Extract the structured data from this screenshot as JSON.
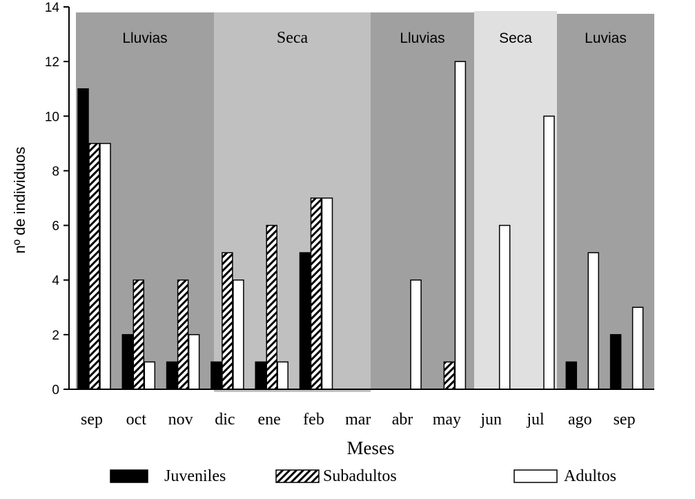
{
  "chart_data": {
    "type": "bar",
    "ylabel": "nº de individuos",
    "xlabel": "Meses",
    "ylim": [
      0,
      14
    ],
    "yticks": [
      "0",
      "2",
      "4",
      "6",
      "8",
      "10",
      "12",
      "14"
    ],
    "categories": [
      "sep",
      "oct",
      "nov",
      "dic",
      "ene",
      "feb",
      "mar",
      "abr",
      "may",
      "jun",
      "jul",
      "ago",
      "sep"
    ],
    "series": [
      {
        "name": "Juveniles",
        "fill": "#000000",
        "values": [
          11,
          2,
          1,
          1,
          1,
          5,
          0,
          0,
          0,
          0,
          0,
          1,
          2
        ]
      },
      {
        "name": "Subadultos",
        "fill": "hatch",
        "values": [
          9,
          4,
          4,
          5,
          6,
          7,
          0,
          0,
          1,
          0,
          0,
          0,
          0
        ]
      },
      {
        "name": "Adultos",
        "fill": "#ffffff",
        "values": [
          9,
          1,
          2,
          4,
          1,
          7,
          0,
          4,
          12,
          6,
          10,
          5,
          3
        ]
      }
    ],
    "seasons": [
      {
        "label": "Lluvias",
        "from": 0,
        "to": 2,
        "color": "#a0a0a0"
      },
      {
        "label": "Seca",
        "from": 3,
        "to": 6,
        "color": "#c0c0c0"
      },
      {
        "label": "Lluvias",
        "from": 7,
        "to": 8,
        "color": "#a0a0a0"
      },
      {
        "label": "Seca",
        "from": 9,
        "to": 10,
        "color": "#e0e0e0"
      },
      {
        "label": "Luvias",
        "from": 11,
        "to": 12,
        "color": "#a0a0a0"
      }
    ],
    "legend_placement": "bottom"
  }
}
